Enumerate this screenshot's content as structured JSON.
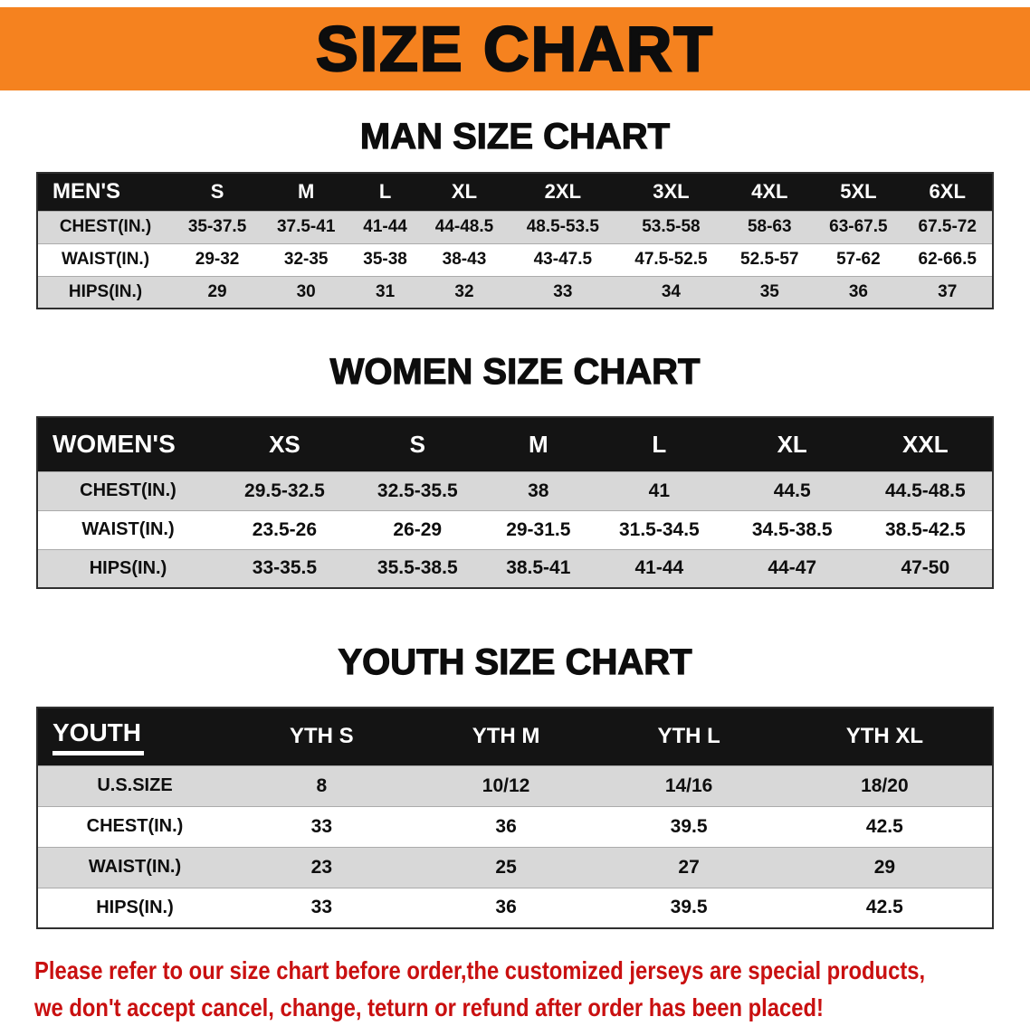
{
  "banner": {
    "title": "SIZE CHART"
  },
  "colors": {
    "banner_bg": "#F5821F",
    "table_header_bg": "#141414",
    "row_gray": "#D8D8D8",
    "disclaimer_text": "#C91010"
  },
  "men": {
    "heading": "MAN SIZE CHART",
    "corner": "MEN'S",
    "cols": [
      "S",
      "M",
      "L",
      "XL",
      "2XL",
      "3XL",
      "4XL",
      "5XL",
      "6XL"
    ],
    "chest": {
      "label": "CHEST(IN.)",
      "values": [
        "35-37.5",
        "37.5-41",
        "41-44",
        "44-48.5",
        "48.5-53.5",
        "53.5-58",
        "58-63",
        "63-67.5",
        "67.5-72"
      ]
    },
    "waist": {
      "label": "WAIST(IN.)",
      "values": [
        "29-32",
        "32-35",
        "35-38",
        "38-43",
        "43-47.5",
        "47.5-52.5",
        "52.5-57",
        "57-62",
        "62-66.5"
      ]
    },
    "hips": {
      "label": "HIPS(IN.)",
      "values": [
        "29",
        "30",
        "31",
        "32",
        "33",
        "34",
        "35",
        "36",
        "37"
      ]
    }
  },
  "women": {
    "heading": "WOMEN SIZE CHART",
    "corner": "WOMEN'S",
    "cols": [
      "XS",
      "S",
      "M",
      "L",
      "XL",
      "XXL"
    ],
    "chest": {
      "label": "CHEST(IN.)",
      "values": [
        "29.5-32.5",
        "32.5-35.5",
        "38",
        "41",
        "44.5",
        "44.5-48.5"
      ]
    },
    "waist": {
      "label": "WAIST(IN.)",
      "values": [
        "23.5-26",
        "26-29",
        "29-31.5",
        "31.5-34.5",
        "34.5-38.5",
        "38.5-42.5"
      ]
    },
    "hips": {
      "label": "HIPS(IN.)",
      "values": [
        "33-35.5",
        "35.5-38.5",
        "38.5-41",
        "41-44",
        "44-47",
        "47-50"
      ]
    }
  },
  "youth": {
    "heading": "YOUTH SIZE CHART",
    "corner": "YOUTH",
    "cols": [
      "YTH S",
      "YTH M",
      "YTH L",
      "YTH XL"
    ],
    "ussize": {
      "label": "U.S.SIZE",
      "values": [
        "8",
        "10/12",
        "14/16",
        "18/20"
      ]
    },
    "chest": {
      "label": "CHEST(IN.)",
      "values": [
        "33",
        "36",
        "39.5",
        "42.5"
      ]
    },
    "waist": {
      "label": "WAIST(IN.)",
      "values": [
        "23",
        "25",
        "27",
        "29"
      ]
    },
    "hips": {
      "label": "HIPS(IN.)",
      "values": [
        "33",
        "36",
        "39.5",
        "42.5"
      ]
    }
  },
  "disclaimer": {
    "line1": "Please refer to our size chart before order,the customized jerseys are special products,",
    "line2": "we don't accept cancel, change, teturn or refund after order has been placed!"
  }
}
